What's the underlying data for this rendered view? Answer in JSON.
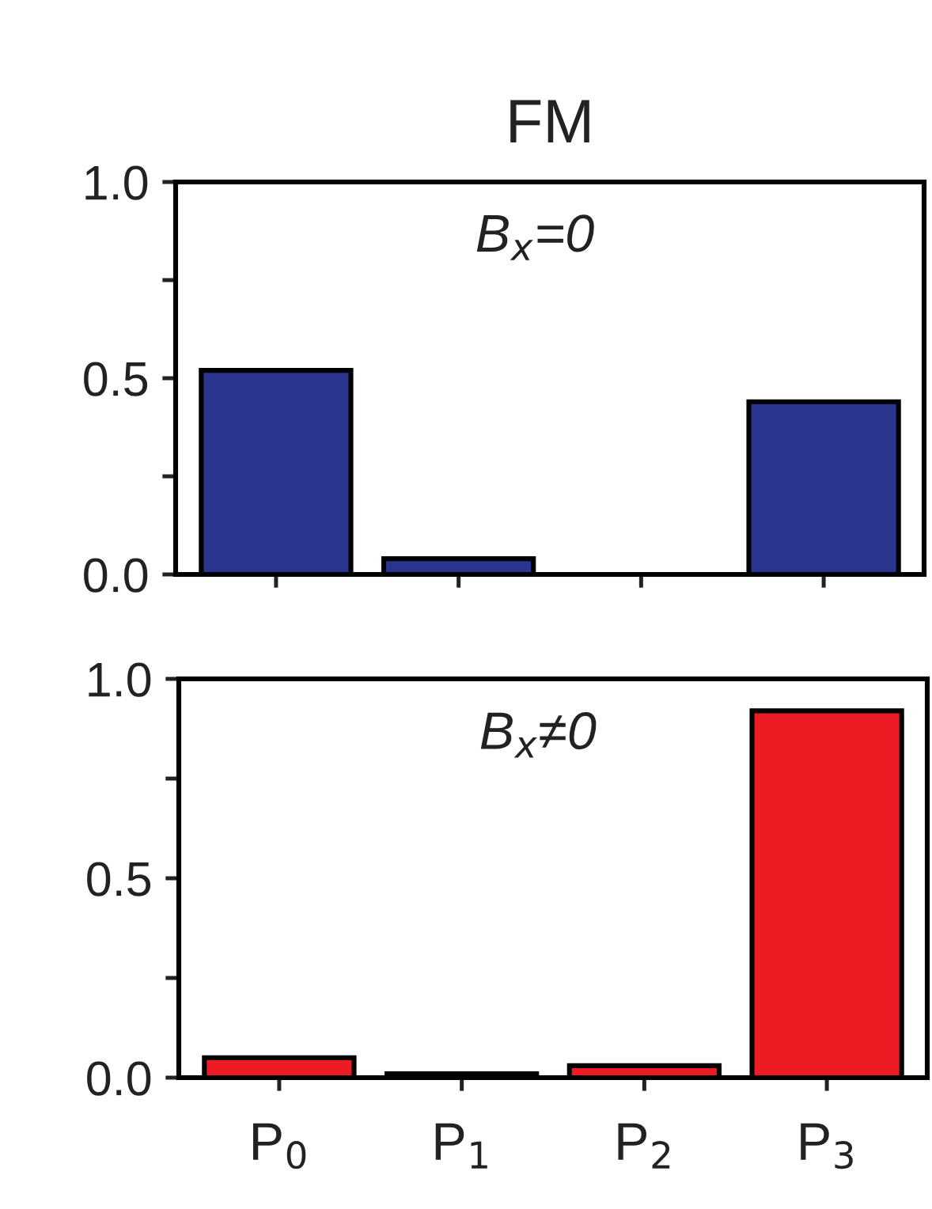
{
  "chart_data": [
    {
      "type": "bar",
      "title": "FM",
      "categories": [
        null,
        null,
        null,
        null
      ],
      "values": [
        0.52,
        0.04,
        0,
        0.44
      ],
      "color": "#2b3590",
      "ylim": [
        0,
        1
      ],
      "yticks": [
        {
          "value": 0,
          "label": "0.0"
        },
        {
          "value": 0.25,
          "label": null
        },
        {
          "value": 0.5,
          "label": "0.5"
        },
        {
          "value": 0.75,
          "label": null
        },
        {
          "value": 1,
          "label": "1.0"
        }
      ],
      "annotations": [
        "B$_{x}$=0"
      ],
      "tick_labels": "y",
      "grid": false,
      "legend": false
    },
    {
      "type": "bar",
      "categories": [
        "P$_{0}$",
        "P$_{1}$",
        "P$_{2}$",
        "P$_{3}$"
      ],
      "values": [
        0.05,
        0.01,
        0.03,
        0.92
      ],
      "color": "#ed1c24",
      "ylim": [
        0,
        1
      ],
      "yticks": [
        {
          "value": 0,
          "label": "0.0"
        },
        {
          "value": 0.25,
          "label": null
        },
        {
          "value": 0.5,
          "label": "0.5"
        },
        {
          "value": 0.75,
          "label": null
        },
        {
          "value": 1,
          "label": "1.0"
        }
      ],
      "annotations": [
        "B$_{x}$≠0"
      ],
      "grid": false,
      "legend": false
    }
  ]
}
